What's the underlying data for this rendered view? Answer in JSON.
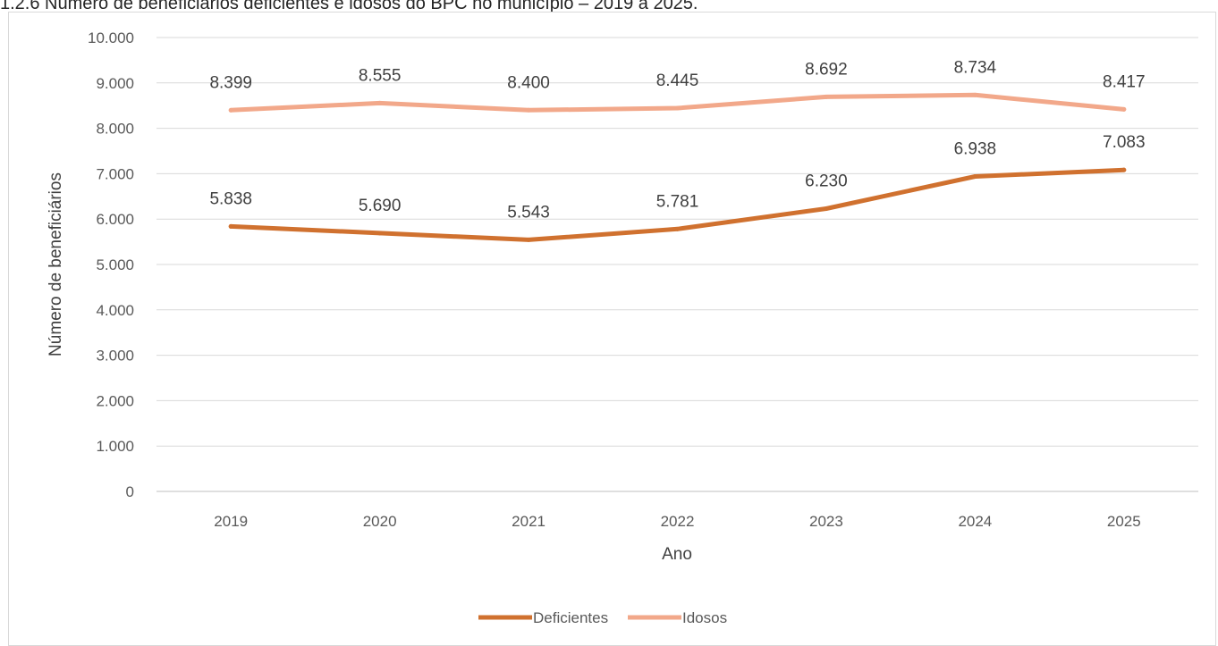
{
  "caption": "1.2.6 Número de beneficiários deficientes e idosos do BPC no município – 2019 a 2025.",
  "chart_data": {
    "type": "line",
    "title": "",
    "xlabel": "Ano",
    "ylabel": "Número de beneficiários",
    "categories": [
      "2019",
      "2020",
      "2021",
      "2022",
      "2023",
      "2024",
      "2025"
    ],
    "ylim": [
      0,
      10000
    ],
    "yticks": [
      0,
      1000,
      2000,
      3000,
      4000,
      5000,
      6000,
      7000,
      8000,
      9000,
      10000
    ],
    "ytick_labels": [
      "0",
      "1.000",
      "2.000",
      "3.000",
      "4.000",
      "5.000",
      "6.000",
      "7.000",
      "8.000",
      "9.000",
      "10.000"
    ],
    "grid": true,
    "legend_position": "bottom",
    "series": [
      {
        "name": "Deficientes",
        "color": "#d0712f",
        "values": [
          5838,
          5690,
          5543,
          5781,
          6230,
          6938,
          7083
        ],
        "labels": [
          "5.838",
          "5.690",
          "5.543",
          "5.781",
          "6.230",
          "6.938",
          "7.083"
        ]
      },
      {
        "name": "Idosos",
        "color": "#f2a88a",
        "values": [
          8399,
          8555,
          8400,
          8445,
          8692,
          8734,
          8417
        ],
        "labels": [
          "8.399",
          "8.555",
          "8.400",
          "8.445",
          "8.692",
          "8.734",
          "8.417"
        ]
      }
    ]
  }
}
